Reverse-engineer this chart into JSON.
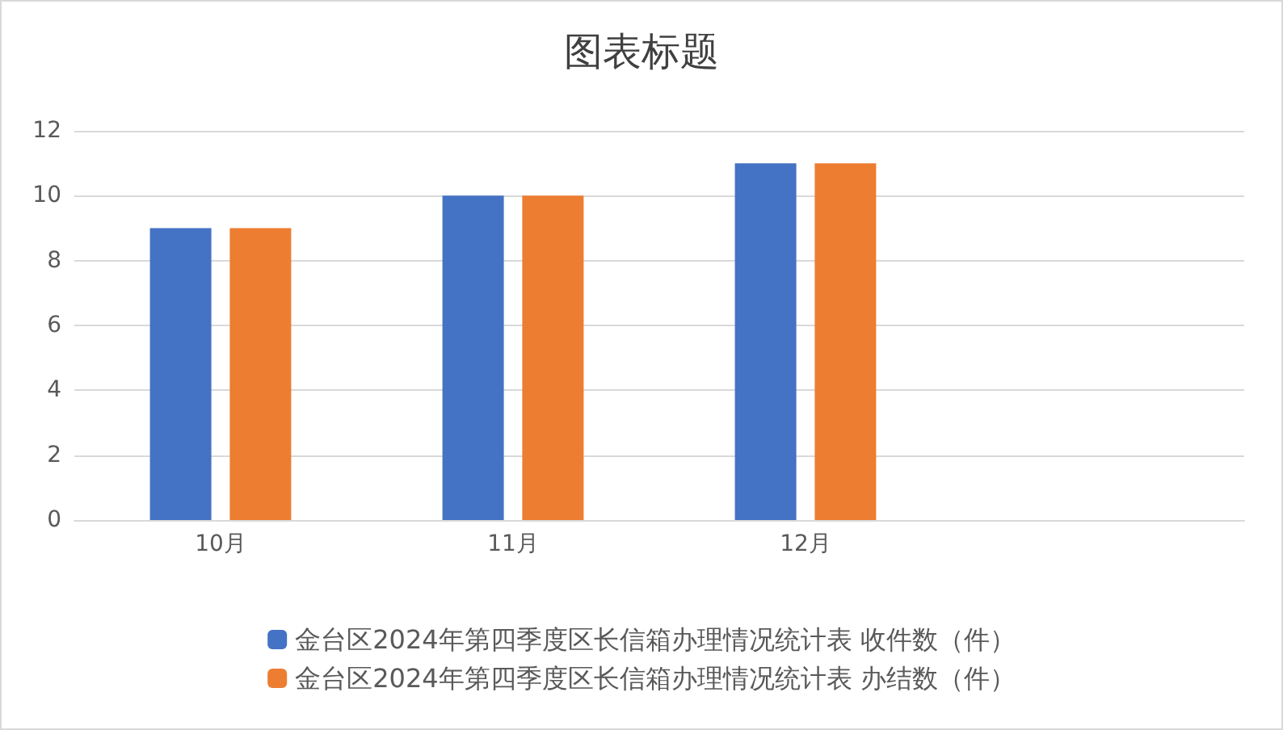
{
  "chart_data": {
    "type": "bar",
    "title": "图表标题",
    "categories": [
      "10月",
      "11月",
      "12月",
      null
    ],
    "series": [
      {
        "name": "金台区2024年第四季度区长信箱办理情况统计表 收件数（件）",
        "color": "#4472c4",
        "values": [
          9,
          10,
          11,
          null
        ]
      },
      {
        "name": "金台区2024年第四季度区长信箱办理情况统计表 办结数（件）",
        "color": "#ed7d31",
        "values": [
          9,
          10,
          11,
          null
        ]
      }
    ],
    "ylim": [
      0,
      12
    ],
    "yticks": [
      0,
      2,
      4,
      6,
      8,
      10,
      12
    ],
    "grid": "y",
    "legend": "bottom"
  }
}
